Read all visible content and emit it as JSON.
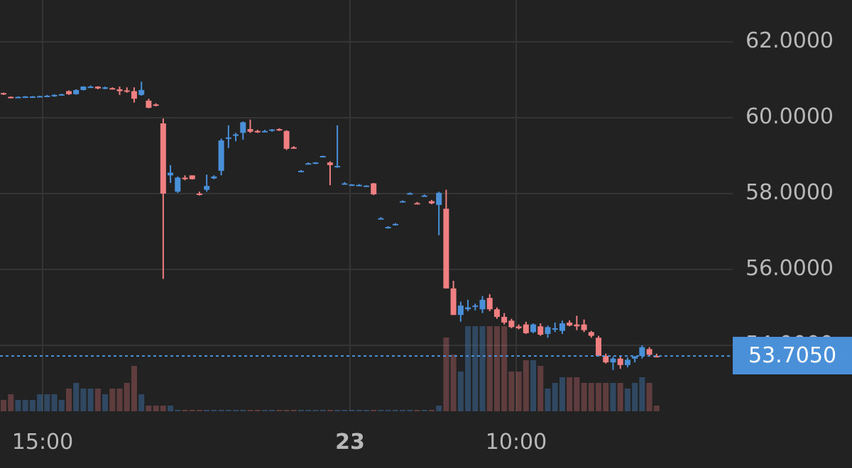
{
  "chart_data": {
    "type": "candlestick",
    "y_axis": {
      "ticks": [
        "62.0000",
        "60.0000",
        "58.0000",
        "56.0000",
        "54.0000"
      ],
      "ylim": [
        51.8,
        63.0
      ]
    },
    "x_axis": {
      "ticks": [
        "15:00",
        "23",
        "10:00"
      ]
    },
    "current_price": "53.7050",
    "up_color": "#4a90d9",
    "down_color": "#ef7f80",
    "candles": [
      [
        60.65,
        60.66,
        60.6,
        60.62,
        2
      ],
      [
        60.55,
        60.56,
        60.51,
        60.52,
        3
      ],
      [
        60.55,
        60.56,
        60.52,
        60.55,
        2
      ],
      [
        60.55,
        60.57,
        60.52,
        60.56,
        2
      ],
      [
        60.55,
        60.57,
        60.53,
        60.56,
        2
      ],
      [
        60.56,
        60.58,
        60.54,
        60.57,
        3
      ],
      [
        60.57,
        60.6,
        60.55,
        60.58,
        3
      ],
      [
        60.58,
        60.62,
        60.55,
        60.6,
        3
      ],
      [
        60.6,
        60.63,
        60.58,
        60.62,
        2
      ],
      [
        60.7,
        60.72,
        60.6,
        60.62,
        4
      ],
      [
        60.62,
        60.75,
        60.61,
        60.73,
        5
      ],
      [
        60.73,
        60.83,
        60.72,
        60.82,
        4
      ],
      [
        60.8,
        60.85,
        60.79,
        60.82,
        4
      ],
      [
        60.82,
        60.83,
        60.75,
        60.77,
        4
      ],
      [
        60.78,
        60.82,
        60.75,
        60.8,
        3
      ],
      [
        60.78,
        60.8,
        60.74,
        60.76,
        4
      ],
      [
        60.75,
        60.82,
        60.6,
        60.7,
        4
      ],
      [
        60.72,
        60.8,
        60.66,
        60.7,
        5
      ],
      [
        60.7,
        60.8,
        60.4,
        60.5,
        8
      ],
      [
        60.6,
        60.95,
        60.58,
        60.73,
        3
      ],
      [
        60.45,
        60.5,
        60.25,
        60.26,
        1
      ],
      [
        60.35,
        60.38,
        60.3,
        60.34,
        1
      ],
      [
        59.85,
        59.98,
        55.75,
        58.0,
        1
      ],
      [
        58.48,
        58.75,
        58.28,
        58.55,
        1
      ],
      [
        58.05,
        58.45,
        58.02,
        58.42,
        0
      ],
      [
        58.42,
        58.48,
        58.35,
        58.38,
        0
      ],
      [
        58.48,
        58.48,
        58.37,
        58.38,
        0
      ],
      [
        58.0,
        58.05,
        57.95,
        57.99,
        0
      ],
      [
        58.1,
        58.5,
        58.05,
        58.2,
        0
      ],
      [
        58.4,
        58.48,
        58.38,
        58.45,
        0
      ],
      [
        58.6,
        59.45,
        58.48,
        59.4,
        0
      ],
      [
        59.45,
        59.8,
        59.2,
        59.48,
        0
      ],
      [
        59.55,
        59.6,
        59.38,
        59.56,
        0
      ],
      [
        59.6,
        59.9,
        59.42,
        59.88,
        0
      ],
      [
        59.7,
        59.95,
        59.6,
        59.63,
        0
      ],
      [
        59.65,
        59.68,
        59.6,
        59.64,
        0
      ],
      [
        59.64,
        59.68,
        59.62,
        59.65,
        0
      ],
      [
        59.66,
        59.7,
        59.63,
        59.69,
        0
      ],
      [
        59.7,
        59.72,
        59.65,
        59.68,
        0
      ],
      [
        59.65,
        59.67,
        59.15,
        59.18,
        0
      ],
      [
        59.22,
        59.25,
        59.18,
        59.2,
        0
      ],
      [
        58.6,
        58.62,
        58.57,
        58.6,
        0
      ],
      [
        58.8,
        58.82,
        58.77,
        58.8,
        0
      ],
      [
        58.81,
        58.83,
        58.78,
        58.82,
        0
      ],
      [
        58.98,
        59.0,
        58.96,
        58.99,
        0
      ],
      [
        58.82,
        58.85,
        58.22,
        58.75,
        0
      ],
      [
        58.72,
        59.8,
        58.68,
        58.73,
        0
      ],
      [
        58.27,
        58.3,
        58.24,
        58.27,
        0
      ],
      [
        58.23,
        58.25,
        58.2,
        58.24,
        0
      ],
      [
        58.22,
        58.25,
        58.2,
        58.23,
        0
      ],
      [
        58.2,
        58.22,
        58.18,
        58.21,
        0
      ],
      [
        58.27,
        58.28,
        57.96,
        57.98,
        0
      ],
      [
        57.35,
        57.38,
        57.32,
        57.35,
        0
      ],
      [
        57.12,
        57.14,
        57.08,
        57.12,
        0
      ],
      [
        57.2,
        57.22,
        57.16,
        57.2,
        0
      ],
      [
        57.8,
        57.82,
        57.78,
        57.8,
        0
      ],
      [
        58.0,
        58.03,
        57.98,
        58.01,
        0
      ],
      [
        57.75,
        57.78,
        57.72,
        57.74,
        0
      ],
      [
        57.95,
        57.98,
        57.92,
        57.95,
        0
      ],
      [
        57.8,
        57.83,
        57.72,
        57.74,
        0
      ],
      [
        57.7,
        58.05,
        56.9,
        58.02,
        1
      ],
      [
        57.6,
        58.1,
        55.5,
        55.5,
        13
      ],
      [
        55.5,
        55.7,
        54.8,
        54.8,
        10
      ],
      [
        54.8,
        55.15,
        54.62,
        55.05,
        7
      ],
      [
        54.95,
        55.2,
        54.9,
        55.0,
        15
      ],
      [
        55.02,
        55.1,
        54.92,
        55.05,
        15
      ],
      [
        54.95,
        55.3,
        54.85,
        55.2,
        15
      ],
      [
        55.25,
        55.35,
        54.9,
        54.95,
        15
      ],
      [
        54.95,
        55.0,
        54.7,
        54.75,
        15
      ],
      [
        54.75,
        54.85,
        54.55,
        54.6,
        15
      ],
      [
        54.65,
        54.7,
        54.45,
        54.48,
        7
      ],
      [
        54.5,
        54.55,
        54.42,
        54.45,
        7
      ],
      [
        54.55,
        54.62,
        54.3,
        54.32,
        9
      ],
      [
        54.35,
        54.58,
        54.32,
        54.55,
        9
      ],
      [
        54.5,
        54.58,
        54.25,
        54.28,
        8
      ],
      [
        54.3,
        54.52,
        54.2,
        54.48,
        4
      ],
      [
        54.42,
        54.6,
        54.35,
        54.45,
        5
      ],
      [
        54.38,
        54.65,
        54.3,
        54.58,
        6
      ],
      [
        54.6,
        54.66,
        54.5,
        54.52,
        6
      ],
      [
        54.55,
        54.78,
        54.4,
        54.5,
        6
      ],
      [
        54.55,
        54.68,
        54.35,
        54.4,
        5
      ],
      [
        54.35,
        54.38,
        54.2,
        54.25,
        5
      ],
      [
        54.2,
        54.25,
        53.7,
        53.72,
        5
      ],
      [
        53.72,
        53.78,
        53.52,
        53.55,
        5
      ],
      [
        53.55,
        53.7,
        53.35,
        53.65,
        5
      ],
      [
        53.65,
        53.72,
        53.38,
        53.48,
        5
      ],
      [
        53.48,
        53.68,
        53.42,
        53.62,
        4
      ],
      [
        53.65,
        53.72,
        53.55,
        53.7,
        5
      ],
      [
        53.72,
        54.0,
        53.65,
        53.95,
        6
      ],
      [
        53.9,
        53.95,
        53.72,
        53.75,
        5
      ],
      [
        53.72,
        53.78,
        53.68,
        53.7,
        1
      ]
    ]
  }
}
